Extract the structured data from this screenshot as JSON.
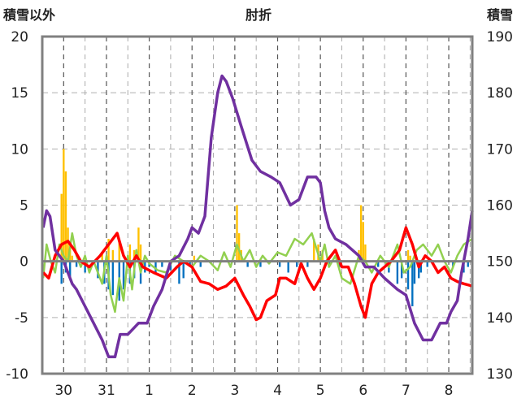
{
  "chart_data": {
    "type": "line",
    "title": "肘折",
    "left_axis_label": "積雪以外",
    "right_axis_label": "積雪",
    "left_ylim": [
      -10,
      20
    ],
    "left_yticks": [
      -10,
      -5,
      0,
      5,
      10,
      15,
      20
    ],
    "right_ylim": [
      130,
      190
    ],
    "right_yticks": [
      130,
      140,
      150,
      160,
      170,
      180,
      190
    ],
    "x_range": [
      29.5,
      39.55
    ],
    "x_ticks": [
      {
        "pos": 30,
        "label": "30"
      },
      {
        "pos": 31,
        "label": "31"
      },
      {
        "pos": 32,
        "label": "1"
      },
      {
        "pos": 33,
        "label": "2"
      },
      {
        "pos": 34,
        "label": "3"
      },
      {
        "pos": 35,
        "label": "4"
      },
      {
        "pos": 36,
        "label": "5"
      },
      {
        "pos": 37,
        "label": "6"
      },
      {
        "pos": 38,
        "label": "7"
      },
      {
        "pos": 39,
        "label": "8"
      }
    ],
    "grid": true,
    "colors": {
      "snow_depth": "#7030a0",
      "temperature": "#ff0000",
      "wind": "#92d050",
      "precip": "#ffc000",
      "snow_diff": "#0070c0",
      "axis_frame": "#808080"
    },
    "series": [
      {
        "key": "snow_depth",
        "axis": "right",
        "points": [
          [
            29.52,
            156
          ],
          [
            29.6,
            159
          ],
          [
            29.68,
            158
          ],
          [
            29.8,
            152
          ],
          [
            30,
            150
          ],
          [
            30.2,
            146
          ],
          [
            30.3,
            145
          ],
          [
            30.5,
            142
          ],
          [
            30.7,
            139
          ],
          [
            30.9,
            136
          ],
          [
            31.05,
            133
          ],
          [
            31.2,
            133
          ],
          [
            31.32,
            137
          ],
          [
            31.5,
            137
          ],
          [
            31.75,
            139
          ],
          [
            31.95,
            139
          ],
          [
            32.1,
            142
          ],
          [
            32.3,
            145
          ],
          [
            32.5,
            150
          ],
          [
            32.7,
            151
          ],
          [
            32.9,
            154
          ],
          [
            33,
            156
          ],
          [
            33.15,
            155
          ],
          [
            33.3,
            158
          ],
          [
            33.45,
            172
          ],
          [
            33.6,
            180
          ],
          [
            33.7,
            183
          ],
          [
            33.8,
            182
          ],
          [
            33.95,
            179
          ],
          [
            34.15,
            174
          ],
          [
            34.4,
            168
          ],
          [
            34.6,
            166
          ],
          [
            34.85,
            165
          ],
          [
            35.05,
            164
          ],
          [
            35.3,
            160
          ],
          [
            35.5,
            161
          ],
          [
            35.7,
            165
          ],
          [
            35.9,
            165
          ],
          [
            36,
            164
          ],
          [
            36.1,
            159
          ],
          [
            36.2,
            156
          ],
          [
            36.35,
            154
          ],
          [
            36.6,
            153
          ],
          [
            36.9,
            151
          ],
          [
            37.05,
            149
          ],
          [
            37.25,
            149
          ],
          [
            37.5,
            147
          ],
          [
            37.8,
            145
          ],
          [
            38,
            144
          ],
          [
            38.2,
            139
          ],
          [
            38.4,
            136
          ],
          [
            38.6,
            136
          ],
          [
            38.8,
            139
          ],
          [
            38.95,
            139
          ],
          [
            39.05,
            141
          ],
          [
            39.2,
            143
          ],
          [
            39.3,
            148
          ],
          [
            39.45,
            154
          ],
          [
            39.55,
            159
          ]
        ]
      },
      {
        "key": "temperature",
        "axis": "left",
        "points": [
          [
            29.52,
            -1
          ],
          [
            29.65,
            -1.5
          ],
          [
            29.8,
            0.5
          ],
          [
            29.95,
            1.5
          ],
          [
            30.1,
            1.8
          ],
          [
            30.25,
            1
          ],
          [
            30.4,
            0
          ],
          [
            30.6,
            -0.5
          ],
          [
            30.85,
            0.5
          ],
          [
            31.05,
            1.5
          ],
          [
            31.25,
            2.5
          ],
          [
            31.4,
            0.5
          ],
          [
            31.55,
            -0.5
          ],
          [
            31.7,
            0.5
          ],
          [
            31.85,
            -0.5
          ],
          [
            32.1,
            -1
          ],
          [
            32.4,
            -1.5
          ],
          [
            32.65,
            -0.5
          ],
          [
            32.8,
            0
          ],
          [
            33,
            -0.5
          ],
          [
            33.2,
            -1.8
          ],
          [
            33.4,
            -2
          ],
          [
            33.6,
            -2.5
          ],
          [
            33.8,
            -2.2
          ],
          [
            34,
            -1.5
          ],
          [
            34.2,
            -3
          ],
          [
            34.35,
            -4
          ],
          [
            34.5,
            -5.2
          ],
          [
            34.6,
            -5
          ],
          [
            34.75,
            -3.5
          ],
          [
            34.95,
            -3
          ],
          [
            35.05,
            -1.5
          ],
          [
            35.2,
            -1.5
          ],
          [
            35.4,
            -2
          ],
          [
            35.55,
            -0.2
          ],
          [
            35.7,
            -1.5
          ],
          [
            35.85,
            -2.5
          ],
          [
            36,
            -1.5
          ],
          [
            36.15,
            0
          ],
          [
            36.35,
            1
          ],
          [
            36.5,
            -0.5
          ],
          [
            36.65,
            -0.5
          ],
          [
            36.8,
            -2
          ],
          [
            36.95,
            -4
          ],
          [
            37.05,
            -5
          ],
          [
            37.2,
            -2
          ],
          [
            37.35,
            -1
          ],
          [
            37.5,
            -0.5
          ],
          [
            37.65,
            0
          ],
          [
            37.85,
            1
          ],
          [
            38,
            3
          ],
          [
            38.15,
            1.5
          ],
          [
            38.3,
            -0.5
          ],
          [
            38.45,
            0.5
          ],
          [
            38.6,
            0
          ],
          [
            38.75,
            -1
          ],
          [
            38.9,
            -0.5
          ],
          [
            39.05,
            -1.5
          ],
          [
            39.2,
            -1.8
          ],
          [
            39.35,
            -2
          ],
          [
            39.55,
            -2.2
          ]
        ]
      },
      {
        "key": "wind",
        "axis": "left",
        "points": [
          [
            29.52,
            -1.5
          ],
          [
            29.6,
            1.5
          ],
          [
            29.7,
            0
          ],
          [
            29.8,
            -1
          ],
          [
            29.9,
            1.5
          ],
          [
            30,
            0.5
          ],
          [
            30.1,
            0
          ],
          [
            30.2,
            2.5
          ],
          [
            30.3,
            0.5
          ],
          [
            30.4,
            -0.5
          ],
          [
            30.5,
            0.5
          ],
          [
            30.6,
            -1
          ],
          [
            30.7,
            0
          ],
          [
            30.8,
            -1
          ],
          [
            30.9,
            -2
          ],
          [
            31,
            0.5
          ],
          [
            31.1,
            -3
          ],
          [
            31.2,
            -4.5
          ],
          [
            31.3,
            -1.5
          ],
          [
            31.4,
            -3.5
          ],
          [
            31.5,
            0.5
          ],
          [
            31.6,
            -2.5
          ],
          [
            31.7,
            1
          ],
          [
            31.8,
            -1
          ],
          [
            31.9,
            0.5
          ],
          [
            32,
            -0.2
          ],
          [
            32.2,
            -0.8
          ],
          [
            32.4,
            -1
          ],
          [
            32.6,
            0.5
          ],
          [
            32.8,
            0
          ],
          [
            33,
            -0.5
          ],
          [
            33.2,
            0.5
          ],
          [
            33.4,
            0
          ],
          [
            33.6,
            -0.8
          ],
          [
            33.75,
            0.8
          ],
          [
            33.9,
            -0.5
          ],
          [
            34.05,
            1.5
          ],
          [
            34.2,
            0
          ],
          [
            34.35,
            1
          ],
          [
            34.5,
            -0.5
          ],
          [
            34.65,
            0.5
          ],
          [
            34.8,
            -0.2
          ],
          [
            35,
            0.8
          ],
          [
            35.2,
            0.5
          ],
          [
            35.4,
            2
          ],
          [
            35.6,
            1.5
          ],
          [
            35.8,
            2.5
          ],
          [
            36,
            0
          ],
          [
            36.1,
            1.5
          ],
          [
            36.2,
            -0.5
          ],
          [
            36.35,
            0.5
          ],
          [
            36.5,
            -1.5
          ],
          [
            36.7,
            -2
          ],
          [
            36.9,
            0.5
          ],
          [
            37.05,
            0
          ],
          [
            37.2,
            -1
          ],
          [
            37.4,
            0.5
          ],
          [
            37.6,
            -0.5
          ],
          [
            37.8,
            1.5
          ],
          [
            37.95,
            -1
          ],
          [
            38.1,
            -0.5
          ],
          [
            38.25,
            1
          ],
          [
            38.4,
            1.5
          ],
          [
            38.6,
            0.5
          ],
          [
            38.75,
            1.5
          ],
          [
            38.9,
            0
          ],
          [
            39.05,
            -1
          ],
          [
            39.2,
            0.5
          ],
          [
            39.35,
            1.5
          ],
          [
            39.55,
            2
          ]
        ]
      }
    ],
    "bars": [
      {
        "key": "precip",
        "axis": "left",
        "points": [
          [
            29.95,
            6
          ],
          [
            30,
            10
          ],
          [
            30.05,
            8
          ],
          [
            30.1,
            3
          ],
          [
            30.15,
            1.2
          ],
          [
            30.2,
            0.5
          ],
          [
            30.9,
            0.8
          ],
          [
            31.05,
            2
          ],
          [
            31.15,
            1
          ],
          [
            31.3,
            2
          ],
          [
            31.55,
            1.5
          ],
          [
            31.65,
            1
          ],
          [
            31.75,
            3
          ],
          [
            31.8,
            1.5
          ],
          [
            33.05,
            0.5
          ],
          [
            34.05,
            5
          ],
          [
            34.1,
            2.5
          ],
          [
            34.15,
            1
          ],
          [
            35.85,
            2
          ],
          [
            35.95,
            1.5
          ],
          [
            36.05,
            1
          ],
          [
            36.9,
            1
          ],
          [
            36.95,
            5
          ],
          [
            37,
            3.5
          ],
          [
            37.05,
            1.5
          ],
          [
            38.05,
            1
          ],
          [
            38.1,
            0.5
          ]
        ]
      },
      {
        "key": "snow_diff",
        "axis": "left",
        "points": [
          [
            29.95,
            -2
          ],
          [
            30.05,
            -1
          ],
          [
            30.15,
            -1.5
          ],
          [
            30.3,
            -0.5
          ],
          [
            30.5,
            -1
          ],
          [
            30.8,
            -1.5
          ],
          [
            30.95,
            -2
          ],
          [
            31.05,
            -2.5
          ],
          [
            31.15,
            -3
          ],
          [
            31.3,
            -3.5
          ],
          [
            31.4,
            -2.5
          ],
          [
            31.55,
            -2
          ],
          [
            31.65,
            -1.5
          ],
          [
            31.8,
            -2
          ],
          [
            31.9,
            -1
          ],
          [
            32,
            -0.5
          ],
          [
            32.15,
            -1
          ],
          [
            32.3,
            -0.5
          ],
          [
            32.5,
            -0.8
          ],
          [
            32.7,
            -2
          ],
          [
            32.8,
            -1.5
          ],
          [
            32.95,
            -0.5
          ],
          [
            33.2,
            -0.5
          ],
          [
            34.3,
            -0.5
          ],
          [
            34.6,
            -0.5
          ],
          [
            35.05,
            -0.5
          ],
          [
            35.25,
            -1
          ],
          [
            35.45,
            -0.5
          ],
          [
            35.7,
            -0.5
          ],
          [
            36.2,
            -0.5
          ],
          [
            36.45,
            -0.5
          ],
          [
            37.35,
            -0.5
          ],
          [
            37.6,
            -1
          ],
          [
            37.8,
            -2
          ],
          [
            37.9,
            -1.5
          ],
          [
            38.05,
            -2.5
          ],
          [
            38.15,
            -4
          ],
          [
            38.2,
            -2
          ],
          [
            38.3,
            -1.5
          ],
          [
            38.35,
            -1
          ],
          [
            38.5,
            -0.5
          ],
          [
            39.1,
            -0.5
          ],
          [
            39.35,
            -1
          ],
          [
            39.45,
            -0.5
          ]
        ]
      }
    ]
  }
}
